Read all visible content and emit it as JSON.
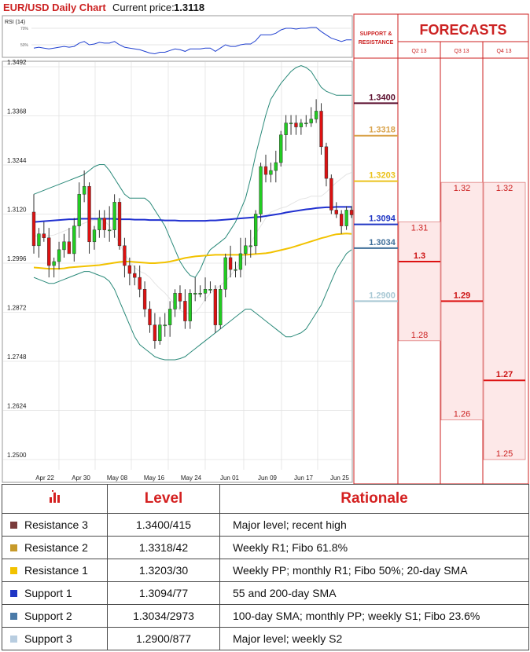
{
  "header": {
    "title": "EUR/USD Daily Chart",
    "price_label": "Current price:",
    "price_value": "1.3118"
  },
  "rsi": {
    "label": "RSI (14)",
    "ticks": [
      "70%",
      "50%"
    ]
  },
  "panel": {
    "sr_title_1": "SUPPORT &",
    "sr_title_2": "RESISTANCE",
    "forecasts_title": "FORECASTS",
    "quarters": [
      "Q2 13",
      "Q3 13",
      "Q4 13"
    ]
  },
  "chart_data": {
    "type": "candlestick",
    "title": "EUR/USD Daily Chart",
    "y_ticks": [
      "1.3492",
      "1.3368",
      "1.3244",
      "1.3120",
      "1.2996",
      "1.2872",
      "1.2748",
      "1.2624",
      "1.2500"
    ],
    "ylim": [
      1.25,
      1.3492
    ],
    "x_ticks": [
      "Apr 22",
      "Apr 30",
      "May 08",
      "May 16",
      "May 24",
      "Jun 01",
      "Jun 09",
      "Jun 17",
      "Jun 25"
    ],
    "grid": true,
    "candles": [
      {
        "o": 1.3125,
        "h": 1.317,
        "l": 1.302,
        "c": 1.304
      },
      {
        "o": 1.304,
        "h": 1.3085,
        "l": 1.301,
        "c": 1.307
      },
      {
        "o": 1.307,
        "h": 1.31,
        "l": 1.305,
        "c": 1.306
      },
      {
        "o": 1.306,
        "h": 1.3085,
        "l": 1.296,
        "c": 1.299
      },
      {
        "o": 1.299,
        "h": 1.301,
        "l": 1.296,
        "c": 1.3
      },
      {
        "o": 1.3,
        "h": 1.305,
        "l": 1.298,
        "c": 1.303
      },
      {
        "o": 1.303,
        "h": 1.307,
        "l": 1.301,
        "c": 1.305
      },
      {
        "o": 1.305,
        "h": 1.3085,
        "l": 1.302,
        "c": 1.302
      },
      {
        "o": 1.302,
        "h": 1.311,
        "l": 1.3,
        "c": 1.309
      },
      {
        "o": 1.309,
        "h": 1.32,
        "l": 1.306,
        "c": 1.317
      },
      {
        "o": 1.317,
        "h": 1.323,
        "l": 1.315,
        "c": 1.319
      },
      {
        "o": 1.319,
        "h": 1.32,
        "l": 1.302,
        "c": 1.305
      },
      {
        "o": 1.305,
        "h": 1.309,
        "l": 1.303,
        "c": 1.308
      },
      {
        "o": 1.308,
        "h": 1.313,
        "l": 1.306,
        "c": 1.311
      },
      {
        "o": 1.311,
        "h": 1.313,
        "l": 1.306,
        "c": 1.308
      },
      {
        "o": 1.308,
        "h": 1.314,
        "l": 1.305,
        "c": 1.308
      },
      {
        "o": 1.308,
        "h": 1.317,
        "l": 1.306,
        "c": 1.315
      },
      {
        "o": 1.315,
        "h": 1.316,
        "l": 1.303,
        "c": 1.304
      },
      {
        "o": 1.304,
        "h": 1.306,
        "l": 1.296,
        "c": 1.299
      },
      {
        "o": 1.299,
        "h": 1.301,
        "l": 1.294,
        "c": 1.297
      },
      {
        "o": 1.297,
        "h": 1.299,
        "l": 1.294,
        "c": 1.296
      },
      {
        "o": 1.296,
        "h": 1.299,
        "l": 1.291,
        "c": 1.293
      },
      {
        "o": 1.293,
        "h": 1.295,
        "l": 1.286,
        "c": 1.288
      },
      {
        "o": 1.288,
        "h": 1.29,
        "l": 1.282,
        "c": 1.284
      },
      {
        "o": 1.284,
        "h": 1.287,
        "l": 1.278,
        "c": 1.28
      },
      {
        "o": 1.28,
        "h": 1.286,
        "l": 1.279,
        "c": 1.284
      },
      {
        "o": 1.284,
        "h": 1.287,
        "l": 1.281,
        "c": 1.284
      },
      {
        "o": 1.284,
        "h": 1.29,
        "l": 1.281,
        "c": 1.288
      },
      {
        "o": 1.288,
        "h": 1.293,
        "l": 1.286,
        "c": 1.292
      },
      {
        "o": 1.292,
        "h": 1.294,
        "l": 1.288,
        "c": 1.29
      },
      {
        "o": 1.29,
        "h": 1.293,
        "l": 1.283,
        "c": 1.285
      },
      {
        "o": 1.285,
        "h": 1.293,
        "l": 1.283,
        "c": 1.292
      },
      {
        "o": 1.292,
        "h": 1.296,
        "l": 1.29,
        "c": 1.292
      },
      {
        "o": 1.292,
        "h": 1.294,
        "l": 1.291,
        "c": 1.292
      },
      {
        "o": 1.292,
        "h": 1.296,
        "l": 1.29,
        "c": 1.293
      },
      {
        "o": 1.293,
        "h": 1.295,
        "l": 1.292,
        "c": 1.293
      },
      {
        "o": 1.293,
        "h": 1.294,
        "l": 1.282,
        "c": 1.284
      },
      {
        "o": 1.284,
        "h": 1.294,
        "l": 1.283,
        "c": 1.293
      },
      {
        "o": 1.293,
        "h": 1.302,
        "l": 1.291,
        "c": 1.301
      },
      {
        "o": 1.301,
        "h": 1.304,
        "l": 1.296,
        "c": 1.298
      },
      {
        "o": 1.298,
        "h": 1.3,
        "l": 1.296,
        "c": 1.298
      },
      {
        "o": 1.298,
        "h": 1.306,
        "l": 1.296,
        "c": 1.302
      },
      {
        "o": 1.302,
        "h": 1.306,
        "l": 1.299,
        "c": 1.304
      },
      {
        "o": 1.304,
        "h": 1.308,
        "l": 1.301,
        "c": 1.304
      },
      {
        "o": 1.304,
        "h": 1.313,
        "l": 1.302,
        "c": 1.312
      },
      {
        "o": 1.312,
        "h": 1.325,
        "l": 1.31,
        "c": 1.324
      },
      {
        "o": 1.324,
        "h": 1.327,
        "l": 1.32,
        "c": 1.322
      },
      {
        "o": 1.322,
        "h": 1.325,
        "l": 1.32,
        "c": 1.323
      },
      {
        "o": 1.323,
        "h": 1.328,
        "l": 1.32,
        "c": 1.325
      },
      {
        "o": 1.325,
        "h": 1.333,
        "l": 1.324,
        "c": 1.332
      },
      {
        "o": 1.332,
        "h": 1.337,
        "l": 1.328,
        "c": 1.335
      },
      {
        "o": 1.335,
        "h": 1.337,
        "l": 1.332,
        "c": 1.335
      },
      {
        "o": 1.335,
        "h": 1.337,
        "l": 1.332,
        "c": 1.334
      },
      {
        "o": 1.334,
        "h": 1.336,
        "l": 1.332,
        "c": 1.335
      },
      {
        "o": 1.335,
        "h": 1.337,
        "l": 1.334,
        "c": 1.335
      },
      {
        "o": 1.335,
        "h": 1.339,
        "l": 1.334,
        "c": 1.336
      },
      {
        "o": 1.336,
        "h": 1.341,
        "l": 1.335,
        "c": 1.338
      },
      {
        "o": 1.338,
        "h": 1.34,
        "l": 1.327,
        "c": 1.329
      },
      {
        "o": 1.329,
        "h": 1.33,
        "l": 1.319,
        "c": 1.321
      },
      {
        "o": 1.321,
        "h": 1.322,
        "l": 1.312,
        "c": 1.313
      },
      {
        "o": 1.313,
        "h": 1.315,
        "l": 1.311,
        "c": 1.312
      },
      {
        "o": 1.312,
        "h": 1.313,
        "l": 1.307,
        "c": 1.309
      },
      {
        "o": 1.309,
        "h": 1.314,
        "l": 1.308,
        "c": 1.313
      },
      {
        "o": 1.313,
        "h": 1.314,
        "l": 1.311,
        "c": 1.3118
      }
    ],
    "sma200": [
      1.31,
      1.3101,
      1.3102,
      1.3103,
      1.3104,
      1.3105,
      1.3106,
      1.3107,
      1.3107,
      1.3108,
      1.3108,
      1.3108,
      1.3108,
      1.3108,
      1.3108,
      1.3108,
      1.3108,
      1.3107,
      1.3107,
      1.3107,
      1.3106,
      1.3106,
      1.3106,
      1.3105,
      1.3105,
      1.3105,
      1.3104,
      1.3104,
      1.3104,
      1.3103,
      1.3103,
      1.3103,
      1.3103,
      1.3103,
      1.3103,
      1.3104,
      1.3104,
      1.3105,
      1.3106,
      1.3107,
      1.3108,
      1.3109,
      1.311,
      1.3111,
      1.3112,
      1.3113,
      1.3115,
      1.3117,
      1.3119,
      1.3121,
      1.3124,
      1.3126,
      1.3128,
      1.313,
      1.3132,
      1.3133,
      1.3135,
      1.3136,
      1.3137,
      1.3137,
      1.3138,
      1.3138,
      1.3138,
      1.3138
    ],
    "sma100": [
      1.2985,
      1.2984,
      1.2983,
      1.2982,
      1.2982,
      1.2982,
      1.2983,
      1.2985,
      1.2986,
      1.2987,
      1.2988,
      1.2989,
      1.299,
      1.2991,
      1.2993,
      1.2995,
      1.2997,
      1.2999,
      1.3,
      1.3,
      1.2999,
      1.2998,
      1.2997,
      1.2996,
      1.2996,
      1.2997,
      1.2998,
      1.3,
      1.3003,
      1.3006,
      1.3009,
      1.3011,
      1.3013,
      1.3014,
      1.3015,
      1.3016,
      1.3017,
      1.3017,
      1.3017,
      1.3017,
      1.3017,
      1.3017,
      1.3017,
      1.3018,
      1.3019,
      1.302,
      1.3021,
      1.3023,
      1.3026,
      1.3029,
      1.3032,
      1.3035,
      1.3039,
      1.3043,
      1.3047,
      1.3051,
      1.3055,
      1.3059,
      1.3062,
      1.3066,
      1.3069,
      1.307,
      1.3071,
      1.307
    ],
    "bb_upper": [
      1.317,
      1.3175,
      1.318,
      1.3185,
      1.319,
      1.3195,
      1.32,
      1.3205,
      1.321,
      1.3215,
      1.322,
      1.323,
      1.324,
      1.3245,
      1.3245,
      1.323,
      1.321,
      1.319,
      1.317,
      1.316,
      1.316,
      1.316,
      1.316,
      1.315,
      1.313,
      1.311,
      1.309,
      1.306,
      1.303,
      1.3,
      1.298,
      1.2965,
      1.296,
      1.298,
      1.301,
      1.303,
      1.304,
      1.305,
      1.306,
      1.308,
      1.31,
      1.313,
      1.316,
      1.321,
      1.327,
      1.332,
      1.337,
      1.341,
      1.343,
      1.345,
      1.3465,
      1.348,
      1.349,
      1.3495,
      1.349,
      1.348,
      1.346,
      1.344,
      1.343,
      1.3425,
      1.342,
      1.342,
      1.342,
      1.342
    ],
    "bb_lower": [
      1.296,
      1.2955,
      1.295,
      1.2945,
      1.2945,
      1.295,
      1.2955,
      1.296,
      1.2965,
      1.297,
      1.2975,
      1.2975,
      1.297,
      1.2965,
      1.296,
      1.295,
      1.293,
      1.29,
      1.287,
      1.284,
      1.281,
      1.279,
      1.278,
      1.277,
      1.276,
      1.2755,
      1.2752,
      1.2752,
      1.2752,
      1.2755,
      1.276,
      1.277,
      1.278,
      1.279,
      1.28,
      1.281,
      1.282,
      1.283,
      1.284,
      1.285,
      1.286,
      1.287,
      1.288,
      1.288,
      1.287,
      1.286,
      1.285,
      1.284,
      1.283,
      1.282,
      1.281,
      1.281,
      1.2815,
      1.282,
      1.283,
      1.285,
      1.287,
      1.289,
      1.292,
      1.295,
      1.298,
      1.3,
      1.302,
      1.303
    ],
    "bb_middle": [
      1.3065,
      1.3065,
      1.3065,
      1.3065,
      1.3067,
      1.3072,
      1.3077,
      1.3082,
      1.3087,
      1.3092,
      1.3097,
      1.3102,
      1.3105,
      1.3105,
      1.3103,
      1.309,
      1.307,
      1.3045,
      1.302,
      1.3,
      1.2985,
      1.2975,
      1.297,
      1.296,
      1.2945,
      1.2932,
      1.2921,
      1.2906,
      1.2891,
      1.2877,
      1.287,
      1.2867,
      1.287,
      1.2885,
      1.2905,
      1.292,
      1.293,
      1.294,
      1.295,
      1.2965,
      1.298,
      1.3,
      1.302,
      1.3045,
      1.307,
      1.309,
      1.311,
      1.3125,
      1.313,
      1.3135,
      1.3138,
      1.3145,
      1.3152,
      1.3158,
      1.316,
      1.3165,
      1.3165,
      1.3165,
      1.3175,
      1.3188,
      1.32,
      1.321,
      1.322,
      1.3225
    ],
    "rsi": [
      46,
      47,
      46,
      45,
      46,
      47,
      48,
      47,
      48,
      52,
      54,
      50,
      51,
      53,
      52,
      52,
      54,
      50,
      47,
      46,
      45,
      44,
      42,
      40,
      39,
      41,
      41,
      43,
      45,
      44,
      42,
      45,
      45,
      45,
      46,
      46,
      42,
      46,
      50,
      48,
      48,
      50,
      51,
      51,
      55,
      62,
      62,
      62,
      64,
      68,
      70,
      70,
      69,
      70,
      70,
      71,
      71,
      66,
      62,
      58,
      56,
      54,
      56,
      56
    ]
  },
  "sr_levels": [
    {
      "label": "1.3400",
      "color": "#5b0e2d"
    },
    {
      "label": "1.3318",
      "color": "#d9a24a"
    },
    {
      "label": "1.3203",
      "color": "#ebc21c"
    },
    {
      "label": "1.3094",
      "color": "#1f35c4"
    },
    {
      "label": "1.3034",
      "color": "#3f6f9a"
    },
    {
      "label": "1.2900",
      "color": "#a8c8d4"
    }
  ],
  "forecasts": [
    {
      "quarter": "Q2 13",
      "high": "1.31",
      "mid": "1.3",
      "low": "1.28"
    },
    {
      "quarter": "Q3 13",
      "high": "1.32",
      "mid": "1.29",
      "low": "1.26"
    },
    {
      "quarter": "Q4 13",
      "high": "1.32",
      "mid": "1.27",
      "low": "1.25"
    }
  ],
  "table": {
    "headers": {
      "level": "Level",
      "rationale": "Rationale"
    },
    "rows": [
      {
        "name": "Resistance 3",
        "level": "1.3400/415",
        "rationale": "Major level; recent high",
        "color": "#7a3b3b"
      },
      {
        "name": "Resistance 2",
        "level": "1.3318/42",
        "rationale": "Weekly R1; Fibo 61.8%",
        "color": "#c79a2a"
      },
      {
        "name": "Resistance 1",
        "level": "1.3203/30",
        "rationale": "Weekly PP; monthly R1; Fibo 50%; 20-day SMA",
        "color": "#f2c200"
      },
      {
        "name": "Support 1",
        "level": "1.3094/77",
        "rationale": "55 and 200-day SMA",
        "color": "#1f35c4"
      },
      {
        "name": "Support 2",
        "level": "1.3034/2973",
        "rationale": "100-day SMA; monthly PP; weekly S1; Fibo 23.6%",
        "color": "#4a7aa8"
      },
      {
        "name": "Support 3",
        "level": "1.2900/877",
        "rationale": "Major level; weekly S2",
        "color": "#b8cde0"
      }
    ]
  }
}
